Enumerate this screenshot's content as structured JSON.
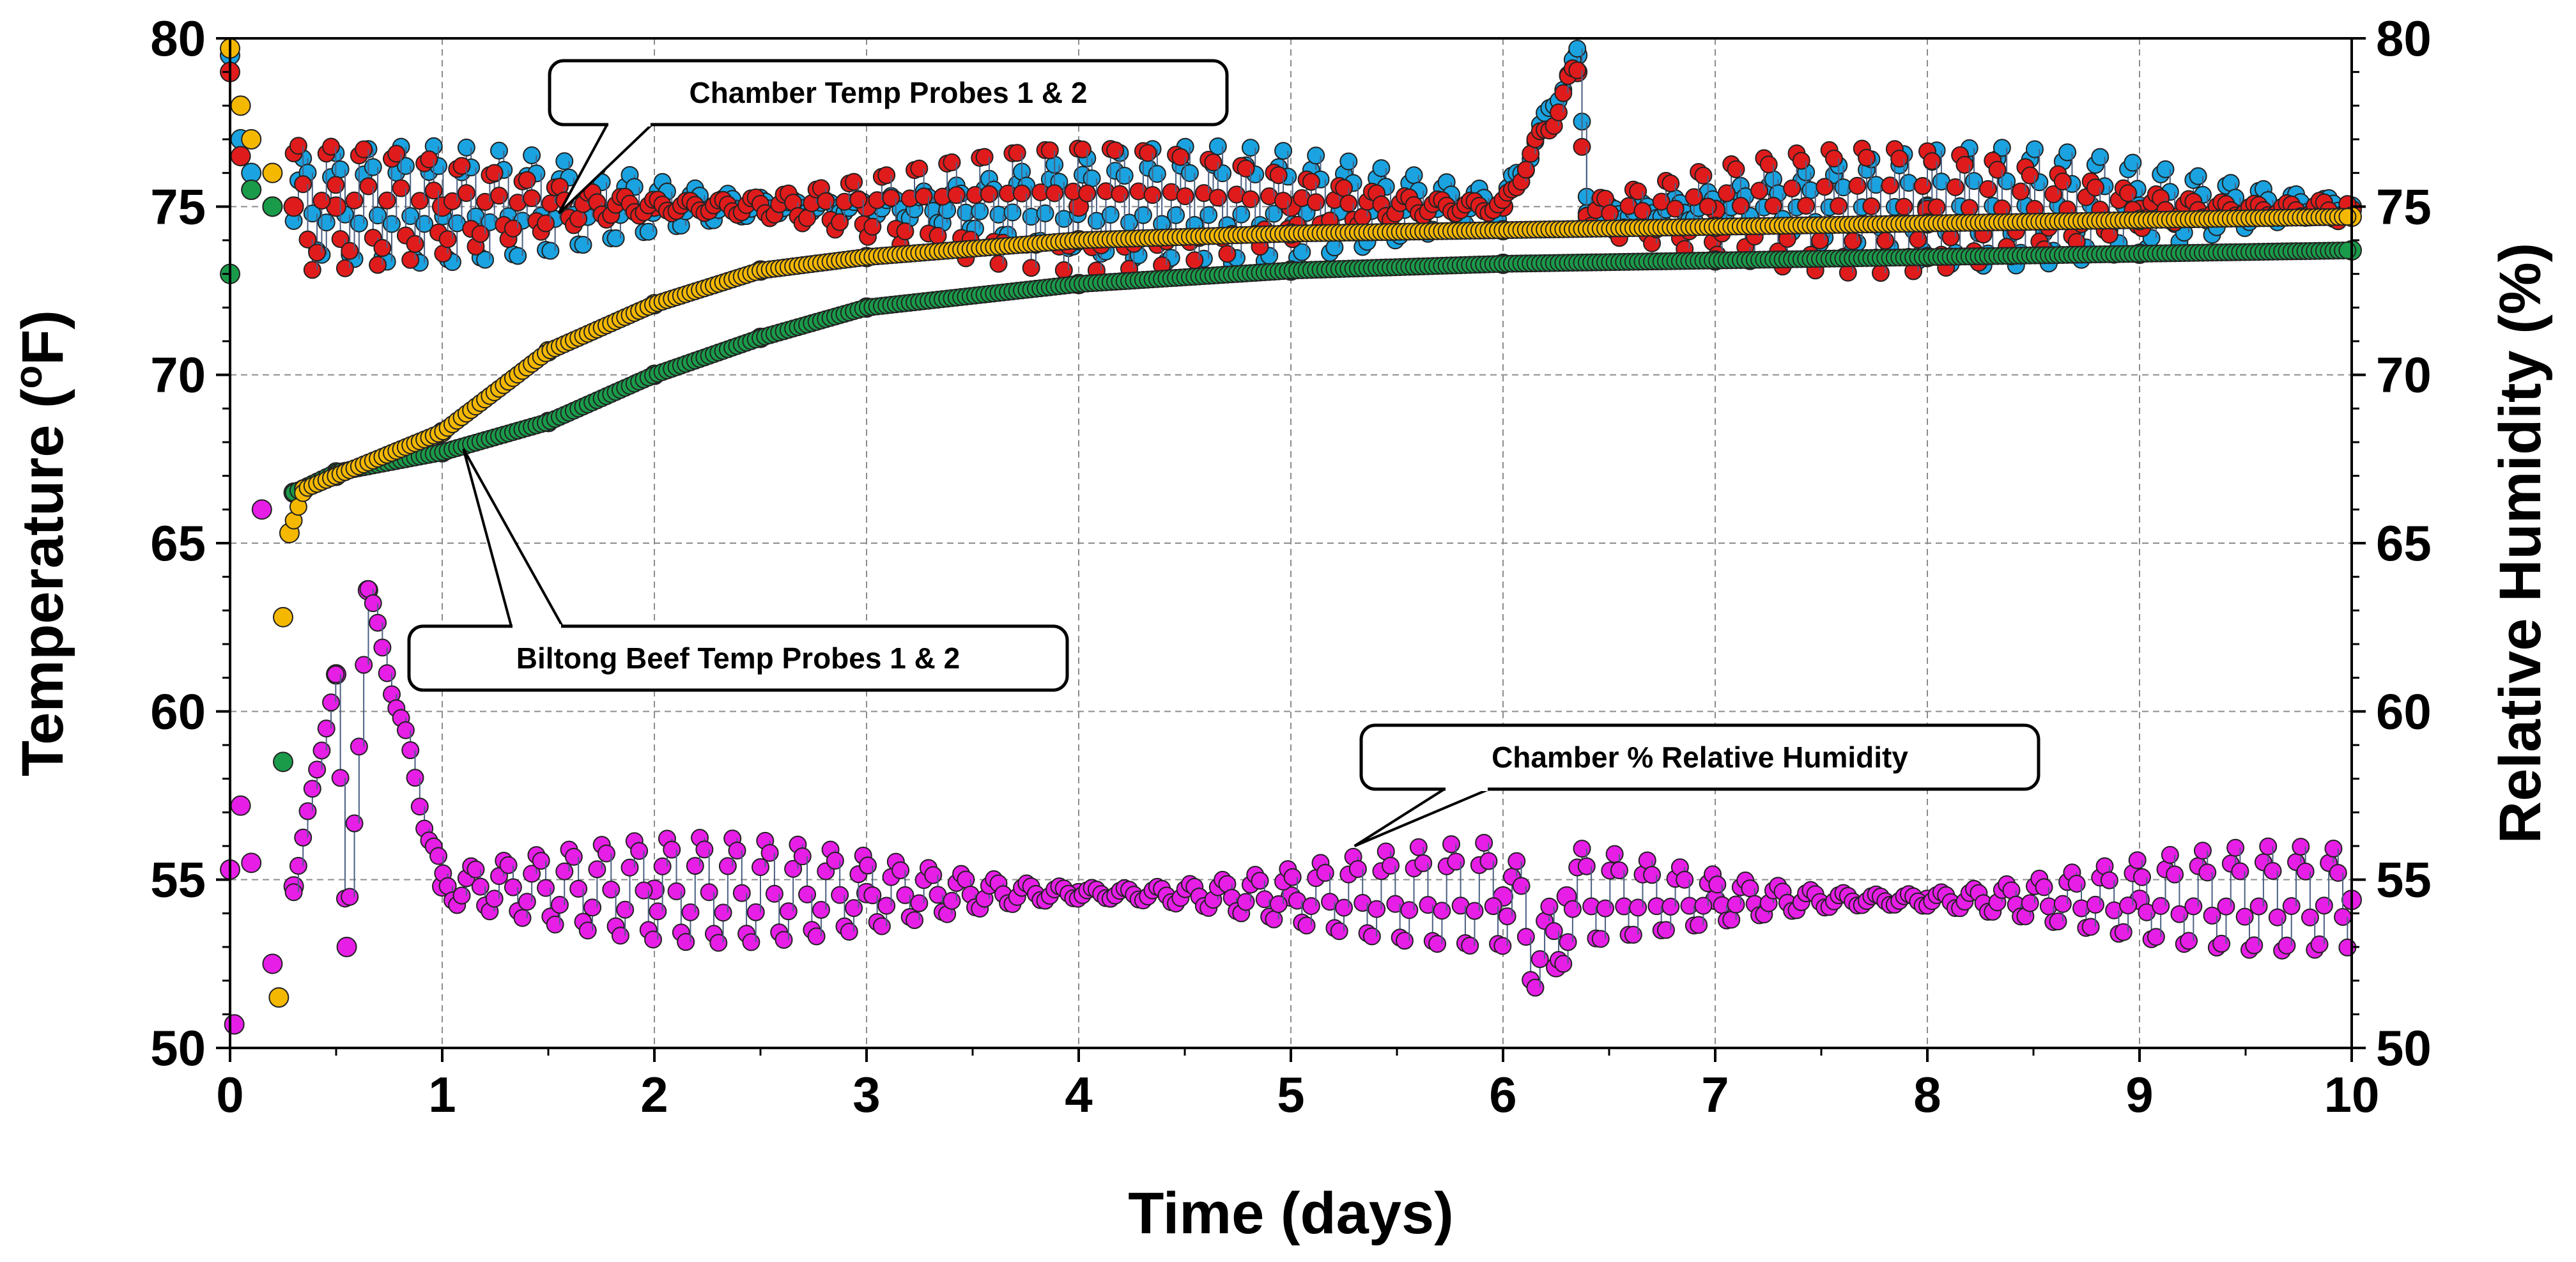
{
  "chart_data": {
    "type": "scatter",
    "title": "",
    "xlabel": "Time (days)",
    "ylabel_left": "Temperature (oF)",
    "ylabel_left_parts": {
      "base": "Temperature (",
      "sup": "o",
      "unit": "F)"
    },
    "ylabel_right": "Relative Humidity (%)",
    "xlim": [
      0,
      10
    ],
    "ylim_left": [
      50,
      80
    ],
    "ylim_right": [
      50,
      80
    ],
    "x_ticks": [
      "0",
      "1",
      "2",
      "3",
      "4",
      "5",
      "6",
      "7",
      "8",
      "9",
      "10"
    ],
    "y_ticks_left": [
      "50",
      "55",
      "60",
      "65",
      "70",
      "75",
      "80"
    ],
    "y_ticks_right": [
      "50",
      "55",
      "60",
      "65",
      "70",
      "75",
      "80"
    ],
    "grid": true,
    "colors": {
      "chamber_probe_1": "#1aa3e0",
      "chamber_probe_2": "#e01b1b",
      "beef_probe_1": "#1a9b4a",
      "beef_probe_2": "#f5b800",
      "humidity": "#e61ee6",
      "connector": "#4a5f82"
    },
    "series": [
      {
        "name": "Chamber Temp Probe 1",
        "color_key": "chamber_probe_1",
        "axis": "left",
        "x": [
          0,
          0.05,
          0.1,
          0.2,
          0.3,
          0.5,
          1,
          2,
          3,
          4,
          5,
          6,
          6.35,
          6.4,
          7,
          8,
          9,
          10
        ],
        "y": [
          79.5,
          77,
          76,
          75,
          75,
          75,
          75,
          75,
          75,
          75,
          75,
          75,
          79.5,
          74.8,
          75,
          75,
          75,
          75
        ],
        "oscillation_amplitude": 1.8
      },
      {
        "name": "Chamber Temp Probe 2",
        "color_key": "chamber_probe_2",
        "axis": "left",
        "x": [
          0,
          0.05,
          0.1,
          0.2,
          0.3,
          0.5,
          1,
          2,
          3,
          4,
          5,
          6,
          6.35,
          6.4,
          7,
          8,
          9,
          10
        ],
        "y": [
          79,
          76.5,
          75.5,
          75,
          75,
          75,
          75,
          75,
          75,
          75,
          75,
          75,
          79,
          74.7,
          74.9,
          74.9,
          74.9,
          74.9
        ],
        "oscillation_amplitude": 1.9
      },
      {
        "name": "Biltong Beef Temp Probe 1",
        "color_key": "beef_probe_1",
        "axis": "left",
        "x": [
          0,
          0.1,
          0.2,
          0.25,
          0.3,
          0.5,
          1,
          1.5,
          2,
          2.5,
          3,
          4,
          5,
          6,
          7,
          8,
          9,
          10
        ],
        "y": [
          73,
          75.5,
          75,
          58.5,
          66.5,
          67.1,
          67.7,
          68.6,
          70,
          71.1,
          72,
          72.7,
          73.1,
          73.3,
          73.4,
          73.5,
          73.6,
          73.7
        ]
      },
      {
        "name": "Biltong Beef Temp Probe 2",
        "color_key": "beef_probe_2",
        "axis": "left",
        "x": [
          0,
          0.05,
          0.1,
          0.2,
          0.23,
          0.25,
          0.28,
          0.35,
          0.5,
          1,
          1.5,
          2,
          2.5,
          3,
          4,
          5,
          6,
          7,
          8,
          9,
          10
        ],
        "y": [
          79.7,
          78,
          77,
          76,
          51.5,
          62.8,
          65.3,
          66.6,
          67,
          68.3,
          70.7,
          72.1,
          73.1,
          73.5,
          74,
          74.2,
          74.3,
          74.4,
          74.5,
          74.6,
          74.7
        ]
      },
      {
        "name": "Chamber % Relative Humidity",
        "color_key": "humidity",
        "axis": "right",
        "x": [
          0,
          0.02,
          0.05,
          0.1,
          0.15,
          0.2,
          0.3,
          0.5,
          0.55,
          0.65,
          1,
          2,
          3,
          4,
          5,
          6,
          6.25,
          6.3,
          7,
          8,
          9,
          10
        ],
        "y": [
          55.3,
          50.7,
          57.2,
          55.5,
          66,
          52.5,
          54.8,
          61.1,
          53,
          63.6,
          54.8,
          54.7,
          54.6,
          54.6,
          54.5,
          54.5,
          52.4,
          54.5,
          54.4,
          54.4,
          54.4,
          54.4
        ],
        "oscillation_amplitude": 1.6
      }
    ],
    "annotations": [
      {
        "key": "chamber",
        "text": "Chamber Temp Probes 1 & 2",
        "target": {
          "x": 1.55,
          "y": 74.8
        }
      },
      {
        "key": "beef",
        "text": "Biltong Beef Temp Probes 1 & 2",
        "target": {
          "x": 1.1,
          "y": 67.8
        }
      },
      {
        "key": "humidity",
        "text": "Chamber % Relative Humidity",
        "target": {
          "x": 5.3,
          "y": 56
        }
      }
    ]
  }
}
